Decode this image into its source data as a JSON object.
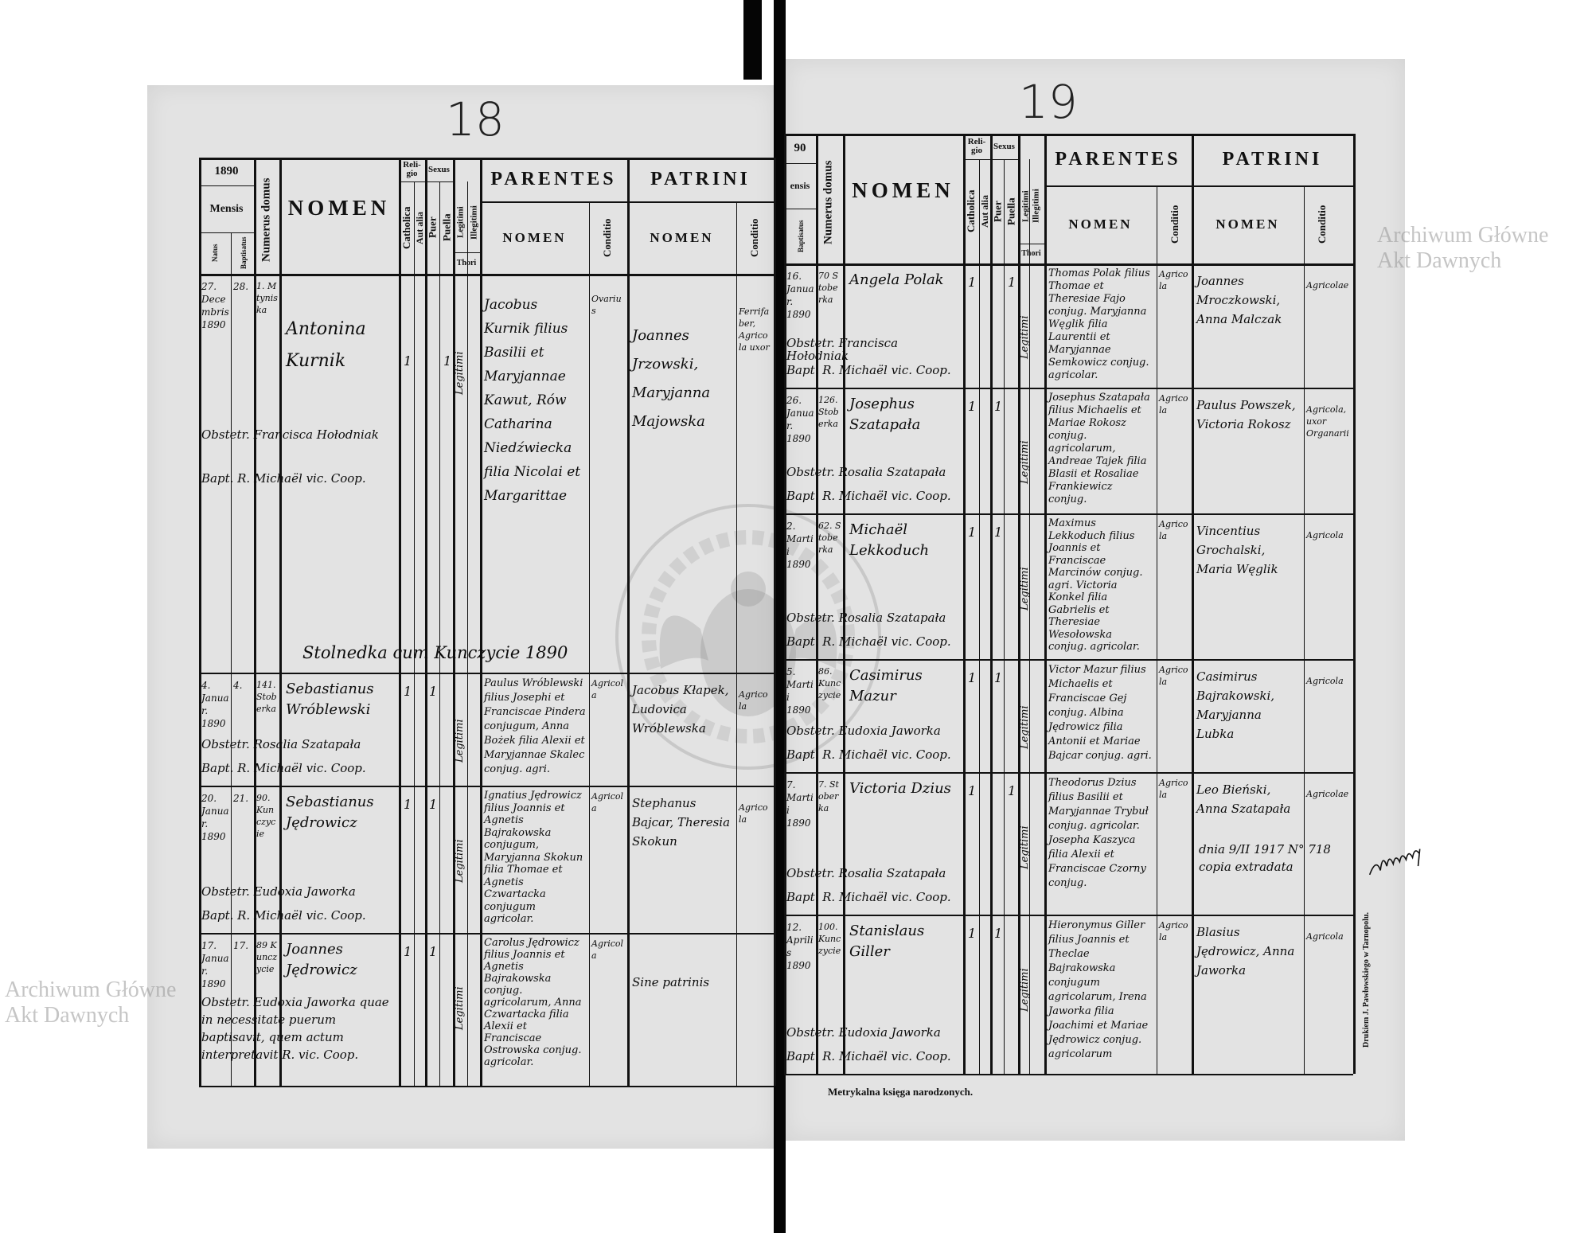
{
  "watermark_text": "Archiwum Główne Akt Dawnych",
  "seal_text": "ARCHIWUM GŁÓWNE AKT DAWNYCH",
  "footer_text": "Metrykalna księga narodzonych.",
  "printer_text": "Drukiem J. Pawłowskiego w Tarnopolu.",
  "header": {
    "year": "1890",
    "year_partial": "90",
    "mensis": "Mensis",
    "mensis_partial": "ensis",
    "natus": "Natus",
    "baptisatus": "Baptisatus",
    "numerus_domus": "Numerus domus",
    "nomen": "NOMEN",
    "religio": "Reli-gio",
    "catholica": "Catholica",
    "aut_alia": "Aut alia",
    "sexus": "Sexus",
    "puer": "Puer",
    "puella": "Puella",
    "legitimi": "Legitimi",
    "illegitimi": "Illegitimi",
    "thori": "Thori",
    "parentes": "PARENTES",
    "patrini": "PATRINI",
    "sub_nomen": "NOMEN",
    "conditio": "Conditio"
  },
  "pages": [
    {
      "page_number": "18",
      "section_heading": "Stolnedka cum Kunczycie 1890",
      "entries": [
        {
          "natus": "27. Decembris 1890",
          "baptisatus": "28.",
          "domus": "1. Mtyniska",
          "nomen": "Antonina Kurnik",
          "catholica": "1",
          "puer": "",
          "puella": "1",
          "thori": "Legitimi",
          "obstetrix": "Obstetr. Francisca Hołodniak",
          "baptizans": "Bapt. R. Michaël vic. Coop.",
          "parentes": "Jacobus Kurnik filius Basilii et Maryjannae Kawut, Rów Catharina Niedźwiecka filia Nicolai et Margarittae",
          "parentes_conditio": "Ovarius",
          "patrini": "Joannes Jrzowski, Maryjanna Majowska",
          "patrini_conditio": "Ferrifaber, Agricola uxor"
        },
        {
          "natus": "4. Januar. 1890",
          "baptisatus": "4.",
          "domus": "141. Stoberka",
          "nomen": "Sebastianus Wróblewski",
          "catholica": "1",
          "puer": "1",
          "puella": "",
          "thori": "Legitimi",
          "obstetrix": "Obstetr. Rosalia Szatapała",
          "baptizans": "Bapt. R. Michaël vic. Coop.",
          "parentes": "Paulus Wróblewski filius Josephi et Franciscae Pindera conjugum, Anna Bożek filia Alexii et Maryjannae Skalec conjug. agri.",
          "parentes_conditio": "Agricola",
          "patrini": "Jacobus Kłapek, Ludovica Wróblewska",
          "patrini_conditio": "Agricola"
        },
        {
          "natus": "20. Januar. 1890",
          "baptisatus": "21.",
          "domus": "90. Kunczycie",
          "nomen": "Sebastianus Jędrowicz",
          "catholica": "1",
          "puer": "1",
          "puella": "",
          "thori": "Legitimi",
          "obstetrix": "Obstetr. Eudoxia Jaworka",
          "baptizans": "Bapt. R. Michaël vic. Coop.",
          "parentes": "Ignatius Jędrowicz filius Joannis et Agnetis Bajrakowska conjugum, Maryjanna Skokun filia Thomae et Agnetis Czwartacka conjugum agricolar.",
          "parentes_conditio": "Agricola",
          "patrini": "Stephanus Bajcar, Theresia Skokun",
          "patrini_conditio": "Agricola"
        },
        {
          "natus": "17. Januar. 1890",
          "baptisatus": "17.",
          "domus": "89 Kunczycie",
          "nomen": "Joannes Jędrowicz",
          "catholica": "1",
          "puer": "1",
          "puella": "",
          "thori": "Legitimi",
          "obstetrix": "Obstetr. Eudoxia Jaworka quae in necessitate puerum baptisavit, quem actum interpretavit R. vic. Coop.",
          "baptizans": "",
          "parentes": "Carolus Jędrowicz filius Joannis et Agnetis Bajrakowska conjug. agricolarum, Anna Czwartacka filia Alexii et Franciscae Ostrowska conjug. agricolar.",
          "parentes_conditio": "Agricola",
          "patrini": "Sine patrinis",
          "patrini_conditio": ""
        }
      ]
    },
    {
      "page_number": "19",
      "section_heading": "",
      "entries": [
        {
          "natus": "",
          "baptisatus": "16. Januar. 1890",
          "domus": "70 Stoberka",
          "nomen": "Angela Polak",
          "catholica": "1",
          "puer": "",
          "puella": "1",
          "thori": "Legitimi",
          "obstetrix": "Obstetr. Francisca Hołodniak",
          "baptizans": "Bapt. R. Michaël vic. Coop.",
          "parentes": "Thomas Polak filius Thomae et Theresiae Fajo conjug. Maryjanna Węglik filia Laurentii et Maryjannae Semkowicz conjug. agricolar.",
          "parentes_conditio": "Agricola",
          "patrini": "Joannes Mroczkowski, Anna Malczak",
          "patrini_conditio": "Agricolae"
        },
        {
          "natus": "",
          "baptisatus": "26. Januar. 1890",
          "domus": "126. Stoberka",
          "nomen": "Josephus Szatapała",
          "catholica": "1",
          "puer": "1",
          "puella": "",
          "thori": "Legitimi",
          "obstetrix": "Obstetr. Rosalia Szatapała",
          "baptizans": "Bapt. R. Michaël vic. Coop.",
          "parentes": "Josephus Szatapała filius Michaelis et Mariae Rokosz conjug. agricolarum, Andreae Tajek filia Blasii et Rosaliae Frankiewicz conjug.",
          "parentes_conditio": "Agricola",
          "patrini": "Paulus Powszek, Victoria Rokosz",
          "patrini_conditio": "Agricola, uxor Organarii"
        },
        {
          "natus": "",
          "baptisatus": "2. Martii 1890",
          "domus": "62. Stoberka",
          "nomen": "Michaël Lekkoduch",
          "catholica": "1",
          "puer": "1",
          "puella": "",
          "thori": "Legitimi",
          "obstetrix": "Obstetr. Rosalia Szatapała",
          "baptizans": "Bapt. R. Michaël vic. Coop.",
          "parentes": "Maximus Lekkoduch filius Joannis et Franciscae Marcinów conjug. agri. Victoria Konkel filia Gabrielis et Theresiae Wesołowska conjug. agricolar.",
          "parentes_conditio": "Agricola",
          "patrini": "Vincentius Grochalski, Maria Węglik",
          "patrini_conditio": "Agricola"
        },
        {
          "natus": "",
          "baptisatus": "5. Martii 1890",
          "domus": "86. Kunczycie",
          "nomen": "Casimirus Mazur",
          "catholica": "1",
          "puer": "1",
          "puella": "",
          "thori": "Legitimi",
          "obstetrix": "Obstetr. Eudoxia Jaworka",
          "baptizans": "Bapt. R. Michaël vic. Coop.",
          "parentes": "Victor Mazur filius Michaelis et Franciscae Gej conjug. Albina Jędrowicz filia Antonii et Mariae Bajcar conjug. agri.",
          "parentes_conditio": "Agricola",
          "patrini": "Casimirus Bajrakowski, Maryjanna Lubka",
          "patrini_conditio": "Agricola"
        },
        {
          "natus": "",
          "baptisatus": "7. Martii 1890",
          "domus": "7. Stoberka",
          "nomen": "Victoria Dzius",
          "catholica": "1",
          "puer": "",
          "puella": "1",
          "thori": "Legitimi",
          "obstetrix": "Obstetr. Rosalia Szatapała",
          "baptizans": "Bapt. R. Michaël vic. Coop.",
          "parentes": "Theodorus Dzius filius Basilii et Maryjannae Trybuł conjug. agricolar. Josepha Kaszyca filia Alexii et Franciscae Czorny conjug.",
          "parentes_conditio": "Agricola",
          "patrini": "Leo Bieński, Anna Szatapała",
          "patrini_conditio": "Agricolae"
        },
        {
          "natus": "",
          "baptisatus": "12. Aprilis 1890",
          "domus": "100. Kunczycie",
          "nomen": "Stanislaus Giller",
          "catholica": "1",
          "puer": "1",
          "puella": "",
          "thori": "Legitimi",
          "obstetrix": "Obstetr. Eudoxia Jaworka",
          "baptizans": "Bapt. R. Michaël vic. Coop.",
          "parentes": "Hieronymus Giller filius Joannis et Theclae Bajrakowska conjugum agricolarum, Irena Jaworka filia Joachimi et Mariae Jędrowicz conjug. agricolarum",
          "parentes_conditio": "Agricola",
          "patrini": "Blasius Jędrowicz, Anna Jaworka",
          "patrini_conditio": "Agricola"
        }
      ],
      "annotation": "dnia 9/II 1917 N° 718 copia extradata",
      "signature": "signature"
    }
  ]
}
